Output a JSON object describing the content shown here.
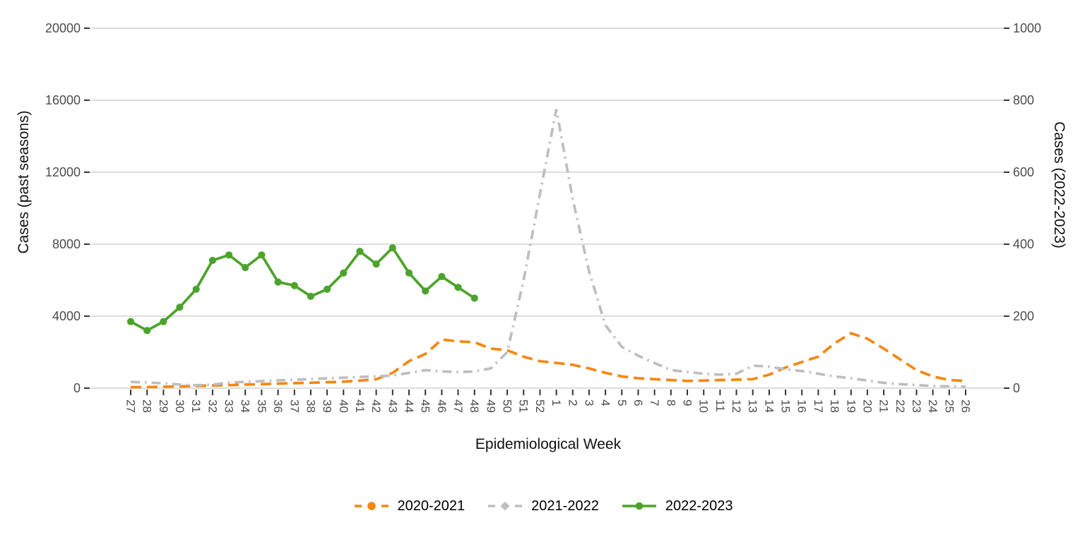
{
  "chart_data": {
    "type": "line",
    "title": "",
    "xlabel": "Epidemiological Week",
    "ylabel_left": "Cases (past seasons)",
    "ylabel_right": "Cases (2022-2023)",
    "x_categories": [
      "27",
      "28",
      "29",
      "30",
      "31",
      "32",
      "33",
      "34",
      "35",
      "36",
      "37",
      "38",
      "39",
      "40",
      "41",
      "42",
      "43",
      "44",
      "45",
      "46",
      "47",
      "48",
      "49",
      "50",
      "51",
      "52",
      "1",
      "2",
      "3",
      "4",
      "5",
      "6",
      "7",
      "8",
      "9",
      "10",
      "11",
      "12",
      "13",
      "14",
      "15",
      "16",
      "17",
      "18",
      "19",
      "20",
      "21",
      "22",
      "23",
      "24",
      "25",
      "26"
    ],
    "left_axis": {
      "min": 0,
      "max": 20000,
      "ticks": [
        0,
        4000,
        8000,
        12000,
        16000,
        20000
      ]
    },
    "right_axis": {
      "min": 0,
      "max": 1000,
      "ticks": [
        0,
        200,
        400,
        600,
        800,
        1000
      ]
    },
    "grid": "horizontal-only",
    "legend_position": "bottom-center",
    "series": [
      {
        "name": "2020-2021",
        "axis": "left",
        "color": "#F8860D",
        "linestyle": "dashed",
        "marker": "none",
        "values": [
          50,
          60,
          80,
          100,
          120,
          150,
          170,
          200,
          220,
          250,
          280,
          300,
          330,
          360,
          420,
          500,
          850,
          1500,
          1900,
          2700,
          2600,
          2550,
          2200,
          2100,
          1750,
          1500,
          1400,
          1300,
          1100,
          850,
          650,
          550,
          500,
          450,
          400,
          420,
          450,
          470,
          500,
          750,
          1150,
          1450,
          1750,
          2500,
          3050,
          2750,
          2200,
          1600,
          1000,
          650,
          450,
          400
        ]
      },
      {
        "name": "2021-2022",
        "axis": "left",
        "color": "#BEBEBE",
        "linestyle": "dashdot",
        "marker": "none",
        "values": [
          350,
          310,
          270,
          200,
          160,
          200,
          310,
          350,
          390,
          430,
          470,
          505,
          545,
          580,
          620,
          660,
          700,
          850,
          1000,
          930,
          890,
          930,
          1100,
          2000,
          6000,
          10800,
          15500,
          10500,
          6500,
          3500,
          2300,
          1800,
          1400,
          1000,
          900,
          800,
          750,
          800,
          1250,
          1200,
          1050,
          950,
          800,
          650,
          550,
          420,
          300,
          220,
          170,
          120,
          100,
          80
        ]
      },
      {
        "name": "2022-2023",
        "axis": "right",
        "color": "#4CA32B",
        "linestyle": "solid",
        "marker": "circle",
        "values": [
          185,
          160,
          185,
          225,
          275,
          355,
          370,
          335,
          370,
          295,
          285,
          255,
          275,
          320,
          380,
          345,
          390,
          320,
          270,
          310,
          280,
          250,
          null,
          null,
          null,
          null,
          null,
          null,
          null,
          null,
          null,
          null,
          null,
          null,
          null,
          null,
          null,
          null,
          null,
          null,
          null,
          null,
          null,
          null,
          null,
          null,
          null,
          null,
          null,
          null,
          null,
          null
        ]
      }
    ]
  },
  "style": {
    "background": "#FFFFFF",
    "grid_color": "#D8D8D8",
    "tick_mark_color": "#333333",
    "tick_label_color": "#4D4D4D",
    "axis_title_color": "#111111"
  }
}
